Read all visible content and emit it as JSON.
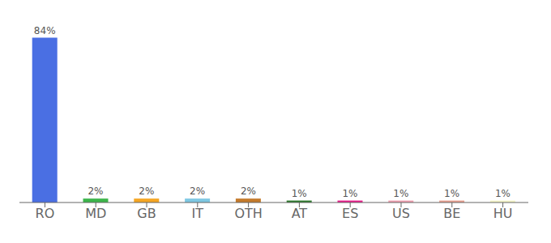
{
  "chart_data": {
    "type": "bar",
    "categories": [
      "RO",
      "MD",
      "GB",
      "IT",
      "OTH",
      "AT",
      "ES",
      "US",
      "BE",
      "HU"
    ],
    "values": [
      84,
      2,
      2,
      2,
      2,
      1,
      1,
      1,
      1,
      1
    ],
    "value_labels": [
      "84%",
      "2%",
      "2%",
      "2%",
      "2%",
      "1%",
      "1%",
      "1%",
      "1%",
      "1%"
    ],
    "data_labels": true,
    "colors": [
      "#4A6FE3",
      "#3CB54A",
      "#F5A623",
      "#7EC8E3",
      "#C47A2B",
      "#2D7A2D",
      "#E91E8C",
      "#F0A0B0",
      "#E8A090",
      "#F5F5C8"
    ],
    "ylim": [
      0,
      90
    ],
    "grid": false,
    "tick_labels": "x"
  }
}
